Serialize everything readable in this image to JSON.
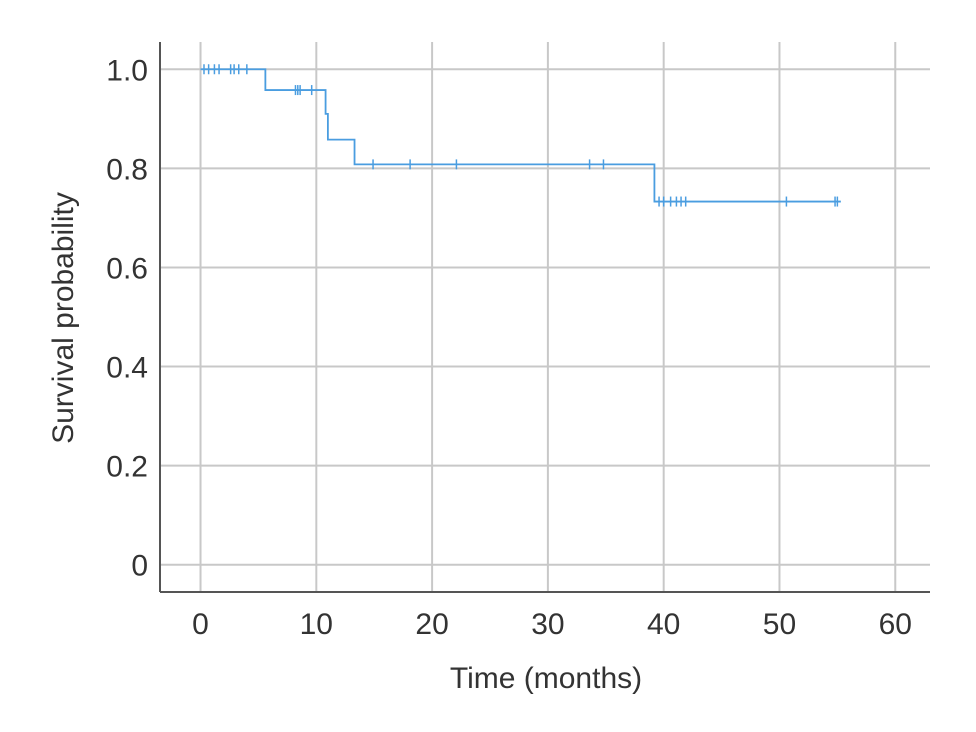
{
  "chart_data": {
    "type": "line",
    "title": "",
    "xlabel": "Time (months)",
    "ylabel": "Survival probability",
    "xlim": [
      -3.5,
      63
    ],
    "ylim": [
      -0.055,
      1.055
    ],
    "xticks": [
      0,
      10,
      20,
      30,
      40,
      50,
      60
    ],
    "xtick_labels": [
      "0",
      "10",
      "20",
      "30",
      "40",
      "50",
      "60"
    ],
    "yticks": [
      0,
      0.2,
      0.4,
      0.6,
      0.8,
      1.0
    ],
    "ytick_labels": [
      "0",
      "0.2",
      "0.4",
      "0.6",
      "0.8",
      "1.0"
    ],
    "grid": true,
    "legend": "none",
    "series": [
      {
        "color": "#4a9de0",
        "step_points": [
          [
            0,
            1.0
          ],
          [
            5.6,
            1.0
          ],
          [
            5.6,
            0.958
          ],
          [
            10.8,
            0.958
          ],
          [
            10.8,
            0.91
          ],
          [
            11.0,
            0.91
          ],
          [
            11.0,
            0.858
          ],
          [
            13.3,
            0.858
          ],
          [
            13.3,
            0.808
          ],
          [
            39.2,
            0.808
          ],
          [
            39.2,
            0.733
          ],
          [
            55.3,
            0.733
          ]
        ],
        "censored": [
          {
            "x": 0.3,
            "y": 1.0
          },
          {
            "x": 0.7,
            "y": 1.0
          },
          {
            "x": 1.2,
            "y": 1.0
          },
          {
            "x": 1.6,
            "y": 1.0
          },
          {
            "x": 2.6,
            "y": 1.0
          },
          {
            "x": 2.9,
            "y": 1.0
          },
          {
            "x": 3.3,
            "y": 1.0
          },
          {
            "x": 4.0,
            "y": 1.0
          },
          {
            "x": 8.2,
            "y": 0.958
          },
          {
            "x": 8.4,
            "y": 0.958
          },
          {
            "x": 8.6,
            "y": 0.958
          },
          {
            "x": 9.6,
            "y": 0.958
          },
          {
            "x": 14.9,
            "y": 0.808
          },
          {
            "x": 18.1,
            "y": 0.808
          },
          {
            "x": 22.1,
            "y": 0.808
          },
          {
            "x": 33.6,
            "y": 0.808
          },
          {
            "x": 34.8,
            "y": 0.808
          },
          {
            "x": 39.6,
            "y": 0.733
          },
          {
            "x": 40.0,
            "y": 0.733
          },
          {
            "x": 40.6,
            "y": 0.733
          },
          {
            "x": 41.1,
            "y": 0.733
          },
          {
            "x": 41.5,
            "y": 0.733
          },
          {
            "x": 41.9,
            "y": 0.733
          },
          {
            "x": 50.6,
            "y": 0.733
          },
          {
            "x": 54.8,
            "y": 0.733
          },
          {
            "x": 55.0,
            "y": 0.733
          }
        ]
      }
    ]
  }
}
